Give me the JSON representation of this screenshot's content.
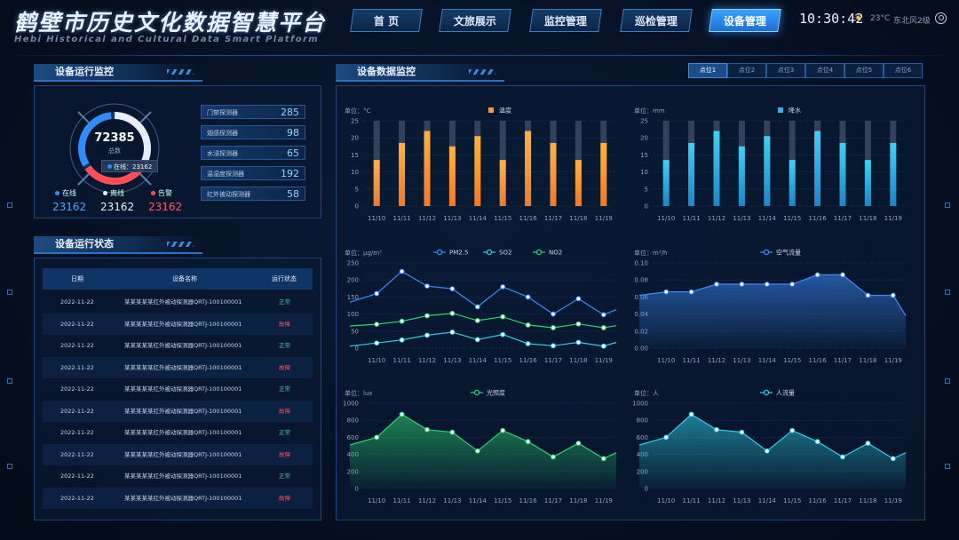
{
  "header": {
    "title": "鹤壁市历史文化数据智慧平台",
    "subtitle": "Hebi Historical and Cultural Data Smart Platform",
    "nav": [
      {
        "label": "首 页",
        "active": false
      },
      {
        "label": "文旅展示",
        "active": false
      },
      {
        "label": "监控管理",
        "active": false
      },
      {
        "label": "巡检管理",
        "active": false
      },
      {
        "label": "设备管理",
        "active": true
      }
    ],
    "time": "10:30:42",
    "temperature": "23°C",
    "wind": "东北风2级",
    "weather_icon": "sun-icon",
    "user_icon": "user-icon"
  },
  "monitor": {
    "title": "设备运行监控",
    "total": "72385",
    "total_label": "总数",
    "tooltip": "在线：23162",
    "legend": [
      {
        "label": "在线",
        "value": "23162",
        "color": "#2f8dff"
      },
      {
        "label": "离线",
        "value": "23162",
        "color": "#e6eefa"
      },
      {
        "label": "告警",
        "value": "23162",
        "color": "#ff4d5a"
      }
    ],
    "ring": {
      "online": 23162,
      "offline": 23162,
      "alarm": 23162
    },
    "devices": [
      {
        "name": "门禁探测器",
        "value": "285"
      },
      {
        "name": "烟感探测器",
        "value": "98"
      },
      {
        "name": "水浸探测器",
        "value": "65"
      },
      {
        "name": "温湿度探测器",
        "value": "192"
      },
      {
        "name": "红外被动探测器",
        "value": "58"
      }
    ]
  },
  "status": {
    "title": "设备运行状态",
    "headers": [
      "日期",
      "设备名称",
      "运行状态"
    ],
    "rows": [
      {
        "date": "2022-11-22",
        "name": "某某某某某红外被动探测器QRTJ-100100001",
        "state": "正常",
        "ok": true
      },
      {
        "date": "2022-11-22",
        "name": "某某某某某红外被动探测器QRTJ-100100001",
        "state": "故障",
        "ok": false
      },
      {
        "date": "2022-11-22",
        "name": "某某某某某红外被动探测器QRTJ-100100001",
        "state": "正常",
        "ok": true
      },
      {
        "date": "2022-11-22",
        "name": "某某某某某红外被动探测器QRTJ-100100001",
        "state": "故障",
        "ok": false
      },
      {
        "date": "2022-11-22",
        "name": "某某某某某红外被动探测器QRTJ-100100001",
        "state": "正常",
        "ok": true
      },
      {
        "date": "2022-11-22",
        "name": "某某某某某红外被动探测器QRTJ-100100001",
        "state": "故障",
        "ok": false
      },
      {
        "date": "2022-11-22",
        "name": "某某某某某红外被动探测器QRTJ-100100001",
        "state": "正常",
        "ok": true
      },
      {
        "date": "2022-11-22",
        "name": "某某某某某红外被动探测器QRTJ-100100001",
        "state": "故障",
        "ok": false
      },
      {
        "date": "2022-11-22",
        "name": "某某某某某红外被动探测器QRTJ-100100001",
        "state": "正常",
        "ok": true
      },
      {
        "date": "2022-11-22",
        "name": "某某某某某红外被动探测器QRTJ-100100001",
        "state": "故障",
        "ok": false
      }
    ]
  },
  "data_monitor": {
    "title": "设备数据监控",
    "tabs": [
      {
        "label": "点位1",
        "active": true
      },
      {
        "label": "点位2",
        "active": false
      },
      {
        "label": "点位3",
        "active": false
      },
      {
        "label": "点位4",
        "active": false
      },
      {
        "label": "点位5",
        "active": false
      },
      {
        "label": "点位6",
        "active": false
      }
    ]
  },
  "chart_data": [
    {
      "type": "bar",
      "unit": "单位：°C",
      "categories": [
        "11/10",
        "11/11",
        "11/12",
        "11/13",
        "11/14",
        "11/15",
        "11/16",
        "11/17",
        "11/18",
        "11/19"
      ],
      "series": [
        {
          "name": "温度",
          "values": [
            13.5,
            18.5,
            22,
            17.5,
            20.5,
            13.5,
            22,
            18.5,
            13.5,
            18.5
          ],
          "color": "#f59a3a"
        }
      ],
      "max_values": [
        25,
        25,
        25,
        25,
        25,
        25,
        25,
        25,
        25,
        25
      ],
      "ylim": [
        0,
        25
      ],
      "yticks": [
        0,
        5,
        10,
        15,
        20,
        25
      ]
    },
    {
      "type": "bar",
      "unit": "单位：mm",
      "categories": [
        "11/10",
        "11/11",
        "11/12",
        "11/13",
        "11/14",
        "11/15",
        "11/16",
        "11/17",
        "11/18",
        "11/19"
      ],
      "series": [
        {
          "name": "降水",
          "values": [
            13.5,
            18.5,
            22,
            17.5,
            20.5,
            13.5,
            22,
            18.5,
            13.5,
            18.5
          ],
          "color": "#2bb4e6"
        }
      ],
      "max_values": [
        25,
        25,
        25,
        25,
        25,
        25,
        25,
        25,
        25,
        25
      ],
      "ylim": [
        0,
        25
      ],
      "yticks": [
        0,
        5,
        10,
        15,
        20,
        25
      ]
    },
    {
      "type": "line",
      "unit": "单位：μg/m³",
      "categories": [
        "11/10",
        "11/11",
        "11/12",
        "11/13",
        "11/14",
        "11/15",
        "11/16",
        "11/17",
        "11/18",
        "11/19"
      ],
      "series": [
        {
          "name": "PM2.5",
          "values": [
            160,
            225,
            182,
            174,
            121,
            180,
            150,
            100,
            145,
            98
          ],
          "start": 135,
          "end": 113,
          "color": "#3d8bff"
        },
        {
          "name": "SO2",
          "values": [
            15,
            24,
            38,
            47,
            25,
            40,
            13,
            7,
            17,
            6
          ],
          "start": 6,
          "end": 17,
          "color": "#2fd1e8"
        },
        {
          "name": "NO2",
          "values": [
            70,
            79,
            95,
            102,
            81,
            92,
            68,
            60,
            71,
            60
          ],
          "start": 65,
          "end": 66,
          "color": "#2ed573"
        }
      ],
      "ylim": [
        0,
        250
      ],
      "yticks": [
        0,
        50,
        100,
        150,
        200,
        250
      ]
    },
    {
      "type": "area",
      "unit": "单位：m³/h",
      "categories": [
        "11/10",
        "11/11",
        "11/12",
        "11/13",
        "11/14",
        "11/15",
        "11/16",
        "11/17",
        "11/18",
        "11/19"
      ],
      "series": [
        {
          "name": "空气流量",
          "values": [
            0.066,
            0.066,
            0.075,
            0.075,
            0.075,
            0.075,
            0.086,
            0.086,
            0.062,
            0.062
          ],
          "start": 0.062,
          "end": 0.038,
          "color": "#3d8bff"
        }
      ],
      "ylim": [
        0,
        0.1
      ],
      "yticks": [
        0,
        0.02,
        0.04,
        0.06,
        0.08,
        0.1
      ]
    },
    {
      "type": "area",
      "unit": "单位：lux",
      "categories": [
        "11/10",
        "11/11",
        "11/12",
        "11/13",
        "11/14",
        "11/15",
        "11/16",
        "11/17",
        "11/18",
        "11/19"
      ],
      "series": [
        {
          "name": "光照度",
          "values": [
            600,
            870,
            690,
            660,
            440,
            680,
            550,
            370,
            530,
            350
          ],
          "start": 510,
          "end": 420,
          "color": "#2ed573"
        }
      ],
      "ylim": [
        0,
        1000
      ],
      "yticks": [
        0,
        200,
        400,
        600,
        800,
        1000
      ]
    },
    {
      "type": "area",
      "unit": "单位：人",
      "categories": [
        "11/10",
        "11/11",
        "11/12",
        "11/13",
        "11/14",
        "11/15",
        "11/16",
        "11/17",
        "11/18",
        "11/19"
      ],
      "series": [
        {
          "name": "人流量",
          "values": [
            600,
            870,
            690,
            660,
            440,
            680,
            550,
            370,
            530,
            350
          ],
          "start": 510,
          "end": 420,
          "color": "#2fd1e8"
        }
      ],
      "ylim": [
        0,
        1000
      ],
      "yticks": [
        0,
        200,
        400,
        600,
        800,
        1000
      ]
    }
  ]
}
